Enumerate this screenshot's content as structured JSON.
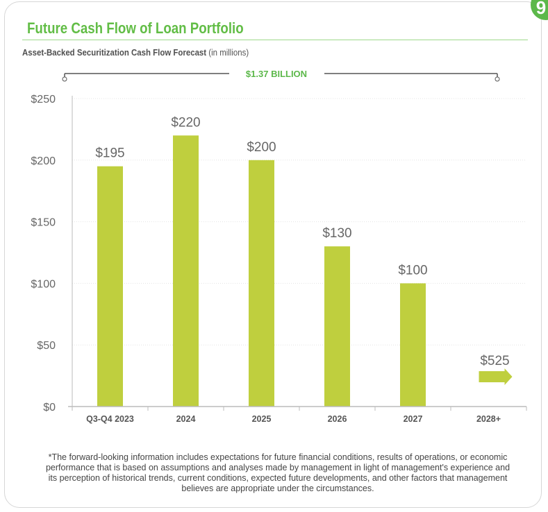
{
  "page_number": "9",
  "title": "Future Cash Flow of Loan Portfolio",
  "subtitle_bold": "Asset-Backed Securitization Cash Flow Forecast",
  "subtitle_rest": "(in millions)",
  "total_label": "$1.37 BILLION",
  "footnote": "*The forward-looking information includes expectations for future financial conditions, results of operations, or economic performance that is based on assumptions and analyses made by management in light of management's experience and its perception of historical trends, current conditions, expected future developments, and other factors that management believes are appropriate under the circumstances.",
  "chart_data": {
    "type": "bar",
    "categories": [
      "Q3-Q4 2023",
      "2024",
      "2025",
      "2026",
      "2027",
      "2028+"
    ],
    "values": [
      195,
      220,
      200,
      130,
      100,
      525
    ],
    "data_labels": [
      "$195",
      "$220",
      "$200",
      "$130",
      "$100",
      "$525"
    ],
    "note": "",
    "ylim": [
      0,
      250
    ],
    "yticks": [
      0,
      50,
      100,
      150,
      200,
      250
    ],
    "ytick_labels": [
      "$0",
      "$50",
      "$100",
      "$150",
      "$200",
      "$250"
    ],
    "grid": true,
    "bar_color": "#bfcf3e",
    "last_category_style": "arrow"
  }
}
